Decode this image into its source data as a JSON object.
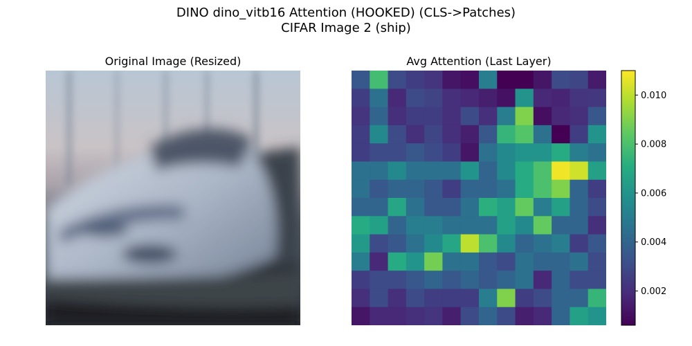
{
  "figure": {
    "title_line1": "DINO dino_vitb16 Attention (HOOKED) (CLS->Patches)",
    "title_line2": "CIFAR Image 2 (ship)"
  },
  "panels": {
    "original": {
      "title": "Original Image (Resized)"
    },
    "attention": {
      "title": "Avg Attention (Last Layer)"
    }
  },
  "chart_data": {
    "type": "heatmap",
    "title": "Avg Attention (Last Layer)",
    "rows": 14,
    "cols": 14,
    "colormap": "viridis",
    "vmin": 0.0006,
    "vmax": 0.011,
    "colorbar_ticks": [
      0.002,
      0.004,
      0.006,
      0.008,
      0.01
    ],
    "colorbar_tick_labels": [
      "0.002",
      "0.004",
      "0.006",
      "0.008",
      "0.010"
    ],
    "values": [
      [
        0.0035,
        0.0078,
        0.003,
        0.0025,
        0.0022,
        0.0012,
        0.001,
        0.005,
        0.0006,
        0.0006,
        0.0012,
        0.003,
        0.0028,
        0.0014
      ],
      [
        0.0025,
        0.0045,
        0.0018,
        0.003,
        0.0027,
        0.002,
        0.0018,
        0.0015,
        0.0011,
        0.006,
        0.0018,
        0.0017,
        0.0022,
        0.0023
      ],
      [
        0.0022,
        0.004,
        0.002,
        0.0025,
        0.0025,
        0.002,
        0.003,
        0.002,
        0.005,
        0.009,
        0.001,
        0.0018,
        0.002,
        0.0035
      ],
      [
        0.0025,
        0.0055,
        0.003,
        0.002,
        0.0028,
        0.002,
        0.0015,
        0.0035,
        0.0075,
        0.0082,
        0.0045,
        0.0006,
        0.0025,
        0.006
      ],
      [
        0.0025,
        0.003,
        0.003,
        0.0035,
        0.003,
        0.0025,
        0.0012,
        0.0045,
        0.0055,
        0.006,
        0.006,
        0.007,
        0.005,
        0.0045
      ],
      [
        0.0045,
        0.0045,
        0.0055,
        0.0045,
        0.0045,
        0.0045,
        0.006,
        0.004,
        0.0055,
        0.007,
        0.008,
        0.0108,
        0.0103,
        0.0065
      ],
      [
        0.0045,
        0.0035,
        0.004,
        0.004,
        0.0035,
        0.0025,
        0.004,
        0.004,
        0.0045,
        0.007,
        0.008,
        0.009,
        0.004,
        0.0025
      ],
      [
        0.004,
        0.004,
        0.0068,
        0.0045,
        0.0035,
        0.0035,
        0.0045,
        0.0072,
        0.0065,
        0.0085,
        0.005,
        0.0065,
        0.004,
        0.003
      ],
      [
        0.007,
        0.0065,
        0.004,
        0.005,
        0.005,
        0.0045,
        0.0045,
        0.0045,
        0.0065,
        0.0055,
        0.0085,
        0.004,
        0.004,
        0.002
      ],
      [
        0.0062,
        0.003,
        0.0035,
        0.0045,
        0.0055,
        0.0068,
        0.01,
        0.008,
        0.0055,
        0.004,
        0.0045,
        0.005,
        0.0025,
        0.0035
      ],
      [
        0.005,
        0.0018,
        0.007,
        0.006,
        0.0088,
        0.0045,
        0.0045,
        0.0035,
        0.003,
        0.0045,
        0.004,
        0.004,
        0.0045,
        0.003
      ],
      [
        0.0025,
        0.003,
        0.003,
        0.0035,
        0.004,
        0.0035,
        0.004,
        0.0035,
        0.004,
        0.0045,
        0.0018,
        0.004,
        0.003,
        0.003
      ],
      [
        0.002,
        0.003,
        0.002,
        0.003,
        0.0025,
        0.0025,
        0.0025,
        0.005,
        0.009,
        0.0025,
        0.003,
        0.004,
        0.004,
        0.0075
      ],
      [
        0.0012,
        0.0018,
        0.0018,
        0.002,
        0.0022,
        0.0015,
        0.003,
        0.004,
        0.003,
        0.0015,
        0.0018,
        0.004,
        0.0065,
        0.006
      ]
    ]
  }
}
